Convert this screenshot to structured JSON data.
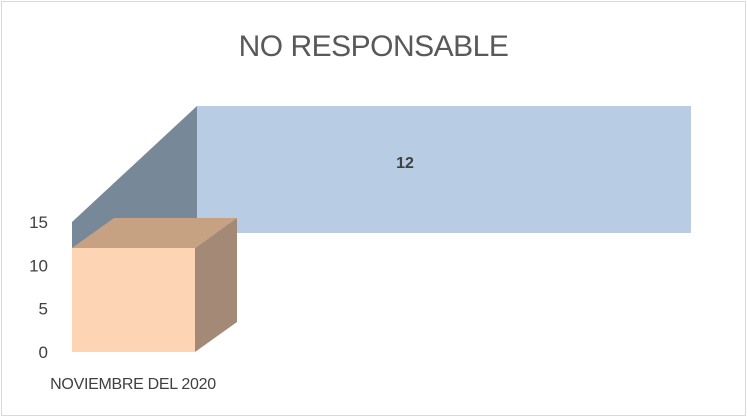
{
  "chart_data": {
    "type": "bar",
    "title": "NO RESPONSABLE",
    "categories": [
      "NOVIEMBRE DEL 2020"
    ],
    "series": [
      {
        "values": [
          12
        ],
        "color": "#fdd5b4"
      }
    ],
    "data_labels": [
      "12"
    ],
    "ylim": [
      0,
      15
    ],
    "yticks": [
      0,
      5,
      10,
      15
    ],
    "grid": false,
    "legend": "none",
    "style": "3d-column"
  },
  "colors": {
    "bar_front": "#fdd5b4",
    "bar_top": "#c6a283",
    "bar_side": "#a48976",
    "wall_back": "#b8cde4",
    "wall_side": "#778899",
    "text": "#404040"
  }
}
